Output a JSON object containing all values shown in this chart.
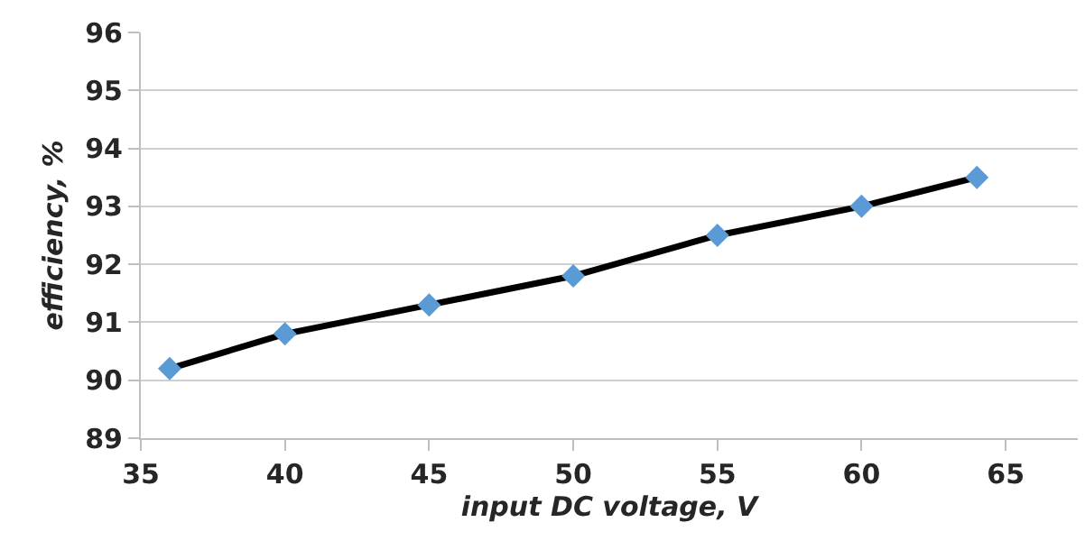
{
  "chart_data": {
    "type": "line",
    "xlabel": "input DC voltage, V",
    "ylabel": "efficiency, %",
    "x": [
      36,
      40,
      45,
      50,
      55,
      60,
      64
    ],
    "series": [
      {
        "color": "#000000",
        "colors": [
          "#5b9bd5",
          "#5b9bd5",
          "#5b9bd5",
          "#5b9bd5",
          "#5b9bd5",
          "#5b9bd5",
          "#5b9bd5"
        ],
        "values": [
          90.2,
          90.8,
          91.3,
          91.8,
          92.5,
          93.0,
          93.5
        ]
      }
    ],
    "xlim": [
      35,
      67.5
    ],
    "xticks": [
      35,
      40,
      45,
      50,
      55,
      60,
      65
    ],
    "ylim": [
      89,
      96
    ],
    "yticks": [
      89,
      90,
      91,
      92,
      93,
      94,
      95,
      96
    ],
    "grid": "y",
    "legend": false,
    "marker": "diamond",
    "line_style": "solid"
  }
}
